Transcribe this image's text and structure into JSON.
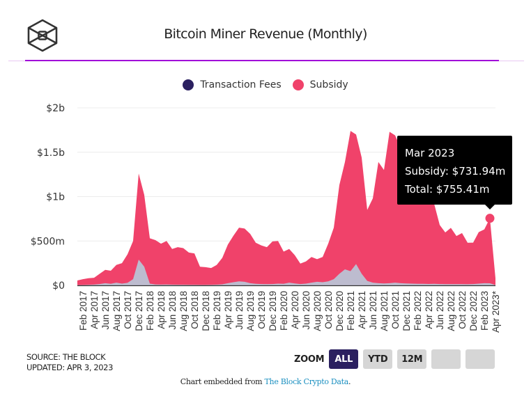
{
  "header": {
    "logo_icon": "the-block-cube-logo",
    "title": "Bitcoin Miner Revenue (Monthly)"
  },
  "legend": [
    {
      "label": "Transaction Fees",
      "color": "#2b2060"
    },
    {
      "label": "Subsidy",
      "color": "#f0426a"
    }
  ],
  "colors": {
    "fees_area": "#bdbccf",
    "subsidy_area": "#f0426a",
    "accent_rule": "#a100d8",
    "tooltip_bg": "#000000",
    "zoom_active": "#2b2060"
  },
  "tooltip": {
    "date": "Mar 2023",
    "subsidy_line": "Subsidy: $731.94m",
    "total_line": "Total: $755.41m"
  },
  "footer": {
    "source": "SOURCE: THE BLOCK",
    "updated": "UPDATED: APR 3, 2023",
    "zoom_label": "ZOOM",
    "zoom_buttons": [
      "ALL",
      "YTD",
      "12M",
      "",
      ""
    ],
    "zoom_active": "ALL",
    "embed_prefix": "Chart embedded from ",
    "embed_link": "The Block Crypto Data",
    "embed_suffix": "."
  },
  "chart_data": {
    "type": "area",
    "stacked": true,
    "title": "Bitcoin Miner Revenue (Monthly)",
    "xlabel": "",
    "ylabel": "",
    "ylim": [
      0,
      2000
    ],
    "y_unit": "$m",
    "yticks": [
      {
        "value": 0,
        "label": "$0"
      },
      {
        "value": 500,
        "label": "$500m"
      },
      {
        "value": 1000,
        "label": "$1b"
      },
      {
        "value": 1500,
        "label": "$1.5b"
      },
      {
        "value": 2000,
        "label": "$2b"
      }
    ],
    "grid": true,
    "legend_position": "top-center",
    "x_start": "Jan 2017",
    "xtick_labels": [
      "Feb 2017",
      "Apr 2017",
      "Jun 2017",
      "Aug 2017",
      "Oct 2017",
      "Dec 2017",
      "Feb 2018",
      "Apr 2018",
      "Jun 2018",
      "Aug 2018",
      "Oct 2018",
      "Dec 2018",
      "Feb 2019",
      "Apr 2019",
      "Jun 2019",
      "Aug 2019",
      "Oct 2019",
      "Dec 2019",
      "Feb 2020",
      "Apr 2020",
      "Jun 2020",
      "Aug 2020",
      "Oct 2020",
      "Dec 2020",
      "Feb 2021",
      "Apr 2021",
      "Jun 2021",
      "Aug 2021",
      "Oct 2021",
      "Dec 2021",
      "Feb 2022",
      "Apr 2022",
      "Jun 2022",
      "Aug 2022",
      "Oct 2022",
      "Dec 2022",
      "Feb 2023",
      "Apr 2023*"
    ],
    "x": [
      "Jan 2017",
      "Feb 2017",
      "Mar 2017",
      "Apr 2017",
      "May 2017",
      "Jun 2017",
      "Jul 2017",
      "Aug 2017",
      "Sep 2017",
      "Oct 2017",
      "Nov 2017",
      "Dec 2017",
      "Jan 2018",
      "Feb 2018",
      "Mar 2018",
      "Apr 2018",
      "May 2018",
      "Jun 2018",
      "Jul 2018",
      "Aug 2018",
      "Sep 2018",
      "Oct 2018",
      "Nov 2018",
      "Dec 2018",
      "Jan 2019",
      "Feb 2019",
      "Mar 2019",
      "Apr 2019",
      "May 2019",
      "Jun 2019",
      "Jul 2019",
      "Aug 2019",
      "Sep 2019",
      "Oct 2019",
      "Nov 2019",
      "Dec 2019",
      "Jan 2020",
      "Feb 2020",
      "Mar 2020",
      "Apr 2020",
      "May 2020",
      "Jun 2020",
      "Jul 2020",
      "Aug 2020",
      "Sep 2020",
      "Oct 2020",
      "Nov 2020",
      "Dec 2020",
      "Jan 2021",
      "Feb 2021",
      "Mar 2021",
      "Apr 2021",
      "May 2021",
      "Jun 2021",
      "Jul 2021",
      "Aug 2021",
      "Sep 2021",
      "Oct 2021",
      "Nov 2021",
      "Dec 2021",
      "Jan 2022",
      "Feb 2022",
      "Mar 2022",
      "Apr 2022",
      "May 2022",
      "Jun 2022",
      "Jul 2022",
      "Aug 2022",
      "Sep 2022",
      "Oct 2022",
      "Nov 2022",
      "Dec 2022",
      "Jan 2023",
      "Feb 2023",
      "Mar 2023",
      "Apr 2023"
    ],
    "series": [
      {
        "name": "Transaction Fees",
        "values": [
          3,
          4,
          6,
          9,
          15,
          25,
          18,
          30,
          20,
          28,
          70,
          290,
          210,
          20,
          10,
          9,
          10,
          8,
          7,
          7,
          6,
          6,
          5,
          5,
          6,
          8,
          12,
          25,
          35,
          45,
          40,
          25,
          18,
          15,
          14,
          15,
          20,
          18,
          30,
          22,
          15,
          20,
          30,
          40,
          35,
          45,
          70,
          130,
          180,
          160,
          240,
          130,
          50,
          30,
          25,
          22,
          25,
          30,
          25,
          22,
          20,
          18,
          18,
          16,
          18,
          15,
          14,
          14,
          14,
          14,
          13,
          15,
          20,
          25,
          23.47,
          3
        ],
        "color": "#bdbccf"
      },
      {
        "name": "Subsidy",
        "values": [
          52,
          66,
          74,
          76,
          115,
          150,
          147,
          200,
          230,
          322,
          430,
          970,
          810,
          510,
          500,
          461,
          490,
          402,
          423,
          413,
          364,
          354,
          205,
          200,
          189,
          222,
          298,
          435,
          525,
          605,
          600,
          555,
          462,
          435,
          416,
          480,
          480,
          362,
          380,
          318,
          230,
          250,
          290,
          255,
          285,
          425,
          580,
          1000,
          1210,
          1580,
          1460,
          1310,
          800,
          950,
          1365,
          1278,
          1705,
          1660,
          1525,
          1228,
          1130,
          1082,
          1032,
          984,
          902,
          665,
          582,
          634,
          542,
          575,
          467,
          466,
          580,
          605,
          731.94,
          77
        ],
        "color": "#f0426a"
      }
    ],
    "highlight": {
      "x": "Mar 2023",
      "subsidy": 731.94,
      "total": 755.41
    }
  }
}
